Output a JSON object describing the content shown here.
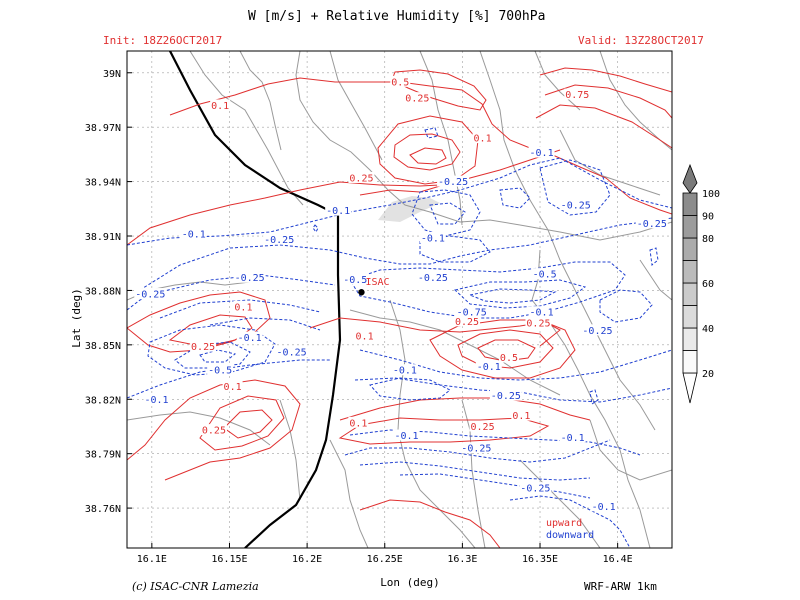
{
  "header": {
    "title": "W [m/s] + Relative Humidity [%] 700hPa",
    "init": "Init: 18Z26OCT2017",
    "valid": "Valid: 13Z28OCT2017"
  },
  "footer": {
    "copyright": "(c) ISAC-CNR Lamezia",
    "model": "WRF-ARW 1km"
  },
  "legend": {
    "upward": "upward",
    "downward": "downward"
  },
  "station": {
    "label": "ISAC",
    "lon": 16.235,
    "lat": 38.879
  },
  "colors": {
    "upward": "#e03030",
    "downward": "#2040d0",
    "coast": "#000000",
    "roads": "#9a9a9a",
    "grid": "#9a9a9a"
  },
  "chart_data": {
    "type": "contour",
    "xlabel": "Lon (deg)",
    "ylabel": "Lat (deg)",
    "xlim": [
      16.084,
      16.435
    ],
    "ylim": [
      38.738,
      39.012
    ],
    "grid": true,
    "x_ticks": [
      {
        "value": 16.1,
        "label": "16.1E"
      },
      {
        "value": 16.15,
        "label": "16.15E"
      },
      {
        "value": 16.2,
        "label": "16.2E"
      },
      {
        "value": 16.25,
        "label": "16.25E"
      },
      {
        "value": 16.3,
        "label": "16.3E"
      },
      {
        "value": 16.35,
        "label": "16.35E"
      },
      {
        "value": 16.4,
        "label": "16.4E"
      }
    ],
    "y_ticks": [
      {
        "value": 38.76,
        "label": "38.76N"
      },
      {
        "value": 38.79,
        "label": "38.79N"
      },
      {
        "value": 38.82,
        "label": "38.82N"
      },
      {
        "value": 38.85,
        "label": "38.85N"
      },
      {
        "value": 38.88,
        "label": "38.88N"
      },
      {
        "value": 38.91,
        "label": "38.91N"
      },
      {
        "value": 38.94,
        "label": "38.94N"
      },
      {
        "value": 38.97,
        "label": "38.97N"
      },
      {
        "value": 39.0,
        "label": "39N"
      }
    ],
    "colorbar": {
      "levels": [
        20,
        30,
        40,
        50,
        60,
        70,
        80,
        90,
        100
      ],
      "labels": [
        "20",
        "40",
        "60",
        "80",
        "90",
        "100"
      ]
    },
    "contour_labels": [
      {
        "text": "0.5",
        "lon": 16.26,
        "lat": 38.995,
        "sign": "up"
      },
      {
        "text": "0.25",
        "lon": 16.271,
        "lat": 38.986,
        "sign": "up"
      },
      {
        "text": "0.75",
        "lon": 16.374,
        "lat": 38.988,
        "sign": "up"
      },
      {
        "text": "0.1",
        "lon": 16.313,
        "lat": 38.964,
        "sign": "up"
      },
      {
        "text": "0.25",
        "lon": 16.235,
        "lat": 38.942,
        "sign": "up"
      },
      {
        "text": "0.1",
        "lon": 16.144,
        "lat": 38.982,
        "sign": "up"
      },
      {
        "text": "0.1",
        "lon": 16.159,
        "lat": 38.871,
        "sign": "up"
      },
      {
        "text": "0.25",
        "lon": 16.133,
        "lat": 38.849,
        "sign": "up"
      },
      {
        "text": "0.25",
        "lon": 16.303,
        "lat": 38.863,
        "sign": "up"
      },
      {
        "text": "0.1",
        "lon": 16.237,
        "lat": 38.855,
        "sign": "up"
      },
      {
        "text": "0.5",
        "lon": 16.33,
        "lat": 38.843,
        "sign": "up"
      },
      {
        "text": "0.25",
        "lon": 16.349,
        "lat": 38.862,
        "sign": "up"
      },
      {
        "text": "0.1",
        "lon": 16.152,
        "lat": 38.827,
        "sign": "up"
      },
      {
        "text": "0.25",
        "lon": 16.14,
        "lat": 38.803,
        "sign": "up"
      },
      {
        "text": "0.1",
        "lon": 16.233,
        "lat": 38.807,
        "sign": "up"
      },
      {
        "text": "0.25",
        "lon": 16.313,
        "lat": 38.805,
        "sign": "up"
      },
      {
        "text": "0.1",
        "lon": 16.338,
        "lat": 38.811,
        "sign": "up"
      },
      {
        "text": "-0.1",
        "lon": 16.351,
        "lat": 38.956,
        "sign": "dn"
      },
      {
        "text": "-0.25",
        "lon": 16.294,
        "lat": 38.94,
        "sign": "dn"
      },
      {
        "text": "-0.25",
        "lon": 16.373,
        "lat": 38.927,
        "sign": "dn"
      },
      {
        "text": "-0.1",
        "lon": 16.22,
        "lat": 38.924,
        "sign": "dn"
      },
      {
        "text": "-0.1",
        "lon": 16.127,
        "lat": 38.911,
        "sign": "dn"
      },
      {
        "text": "-0.25",
        "lon": 16.182,
        "lat": 38.908,
        "sign": "dn"
      },
      {
        "text": "-0.25",
        "lon": 16.422,
        "lat": 38.917,
        "sign": "dn"
      },
      {
        "text": "-0.1",
        "lon": 16.281,
        "lat": 38.909,
        "sign": "dn"
      },
      {
        "text": "-0.25",
        "lon": 16.163,
        "lat": 38.887,
        "sign": "dn"
      },
      {
        "text": "-0.5",
        "lon": 16.231,
        "lat": 38.886,
        "sign": "dn"
      },
      {
        "text": "-0.25",
        "lon": 16.281,
        "lat": 38.887,
        "sign": "dn"
      },
      {
        "text": "-0.5",
        "lon": 16.353,
        "lat": 38.889,
        "sign": "dn"
      },
      {
        "text": "-0.25",
        "lon": 16.099,
        "lat": 38.878,
        "sign": "dn"
      },
      {
        "text": "-0.75",
        "lon": 16.306,
        "lat": 38.868,
        "sign": "dn"
      },
      {
        "text": "-0.1",
        "lon": 16.351,
        "lat": 38.868,
        "sign": "dn"
      },
      {
        "text": "-0.25",
        "lon": 16.387,
        "lat": 38.858,
        "sign": "dn"
      },
      {
        "text": "-0.1",
        "lon": 16.163,
        "lat": 38.854,
        "sign": "dn"
      },
      {
        "text": "-0.25",
        "lon": 16.19,
        "lat": 38.846,
        "sign": "dn"
      },
      {
        "text": "-0.5",
        "lon": 16.144,
        "lat": 38.836,
        "sign": "dn"
      },
      {
        "text": "-0.1",
        "lon": 16.103,
        "lat": 38.82,
        "sign": "dn"
      },
      {
        "text": "-0.1",
        "lon": 16.263,
        "lat": 38.836,
        "sign": "dn"
      },
      {
        "text": "-0.1",
        "lon": 16.317,
        "lat": 38.838,
        "sign": "dn"
      },
      {
        "text": "-0.25",
        "lon": 16.328,
        "lat": 38.822,
        "sign": "dn"
      },
      {
        "text": "-0.1",
        "lon": 16.264,
        "lat": 38.8,
        "sign": "dn"
      },
      {
        "text": "-0.25",
        "lon": 16.309,
        "lat": 38.793,
        "sign": "dn"
      },
      {
        "text": "-0.1",
        "lon": 16.371,
        "lat": 38.799,
        "sign": "dn"
      },
      {
        "text": "-0.25",
        "lon": 16.347,
        "lat": 38.771,
        "sign": "dn"
      },
      {
        "text": "-0.1",
        "lon": 16.391,
        "lat": 38.761,
        "sign": "dn"
      }
    ]
  }
}
